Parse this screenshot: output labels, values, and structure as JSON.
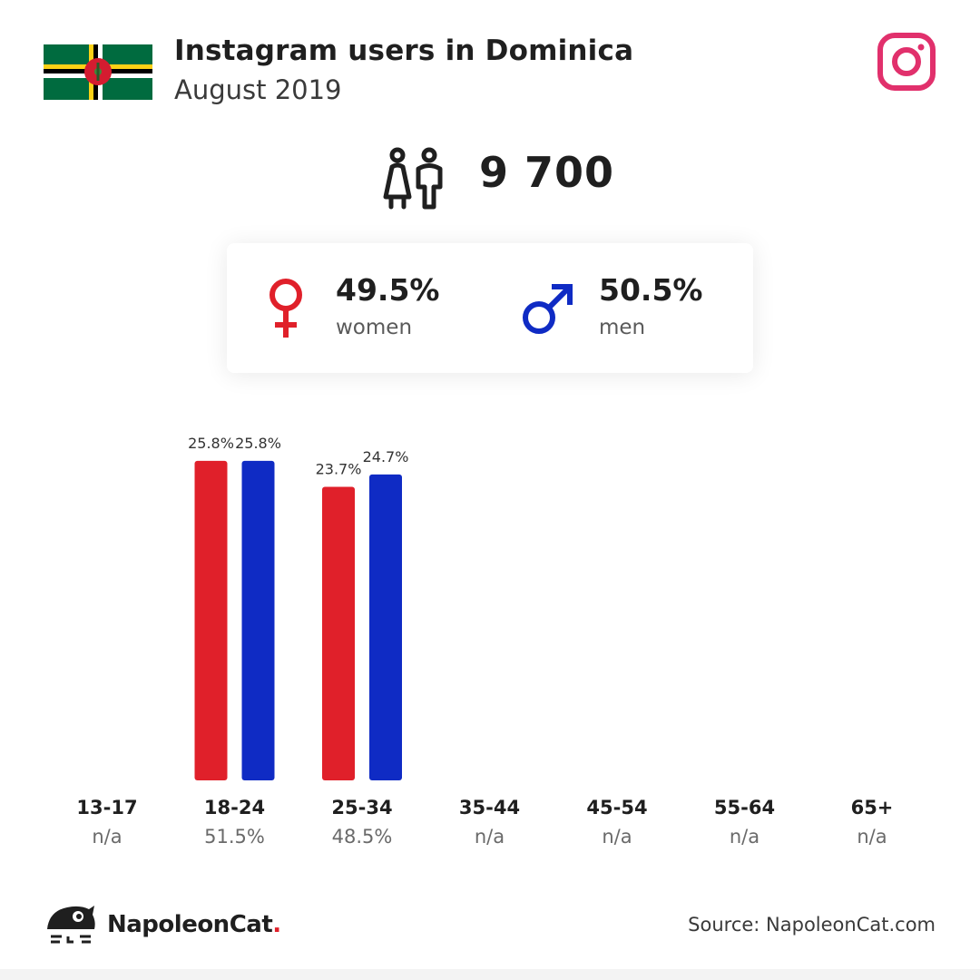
{
  "header": {
    "title": "Instagram users in Dominica",
    "subtitle": "August 2019"
  },
  "total_users": "9 700",
  "gender": {
    "female": {
      "pct": "49.5%",
      "label": "women"
    },
    "male": {
      "pct": "50.5%",
      "label": "men"
    }
  },
  "colors": {
    "female": "#e0202a",
    "male": "#0f2bc4",
    "instagram": "#e1306c"
  },
  "icons": [
    "dominica-flag-icon",
    "instagram-icon",
    "users-icon",
    "female-icon",
    "male-icon",
    "napoleoncat-logo-icon"
  ],
  "chart_data": {
    "type": "bar",
    "categories": [
      "13-17",
      "18-24",
      "25-34",
      "35-44",
      "45-54",
      "55-64",
      "65+"
    ],
    "category_totals": [
      "n/a",
      "51.5%",
      "48.5%",
      "n/a",
      "n/a",
      "n/a",
      "n/a"
    ],
    "series": [
      {
        "name": "women",
        "values": [
          null,
          25.8,
          23.7,
          null,
          null,
          null,
          null
        ],
        "labels": [
          "",
          "25.8%",
          "23.7%",
          "",
          "",
          "",
          ""
        ]
      },
      {
        "name": "men",
        "values": [
          null,
          25.8,
          24.7,
          null,
          null,
          null,
          null
        ],
        "labels": [
          "",
          "25.8%",
          "24.7%",
          "",
          "",
          "",
          ""
        ]
      }
    ]
  },
  "footer": {
    "brand": "NapoleonCat",
    "brand_dot": ".",
    "source": "Source: NapoleonCat.com"
  }
}
